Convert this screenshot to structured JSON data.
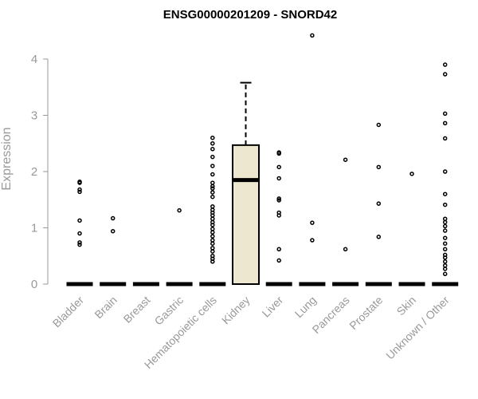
{
  "chart_data": {
    "type": "box",
    "title": "ENSG00000201209 - SNORD42",
    "xlabel": "",
    "ylabel": "Expression",
    "ylim": [
      0,
      4.5
    ],
    "yticks": [
      "0",
      "1",
      "2",
      "3",
      "4"
    ],
    "grid": false,
    "colors": {
      "box_fill": "#ede7cf",
      "stroke": "#000000",
      "axis_text": "#999999"
    },
    "categories": [
      "Bladder",
      "Brain",
      "Breast",
      "Gastric",
      "Hematopoietic cells",
      "Kidney",
      "Liver",
      "Lung",
      "Pancreas",
      "Prostate",
      "Skin",
      "Unknown / Other"
    ],
    "boxes": [
      {
        "name": "Bladder",
        "q1": 0,
        "median": 0,
        "q3": 0,
        "whisker_low": 0,
        "whisker_high": 0,
        "outliers": [
          1.82,
          1.8,
          1.68,
          1.64,
          1.13,
          0.9,
          0.74,
          0.7
        ]
      },
      {
        "name": "Brain",
        "q1": 0,
        "median": 0,
        "q3": 0,
        "whisker_low": 0,
        "whisker_high": 0,
        "outliers": [
          1.17,
          0.94
        ]
      },
      {
        "name": "Breast",
        "q1": 0,
        "median": 0,
        "q3": 0,
        "whisker_low": 0,
        "whisker_high": 0,
        "outliers": []
      },
      {
        "name": "Gastric",
        "q1": 0,
        "median": 0,
        "q3": 0,
        "whisker_low": 0,
        "whisker_high": 0,
        "outliers": [
          1.31
        ]
      },
      {
        "name": "Hematopoietic cells",
        "q1": 0,
        "median": 0,
        "q3": 0,
        "whisker_low": 0,
        "whisker_high": 0,
        "outliers": [
          2.6,
          2.5,
          2.4,
          2.26,
          2.1,
          1.95,
          1.8,
          1.74,
          1.7,
          1.63,
          1.55,
          1.38,
          1.32,
          1.27,
          1.22,
          1.16,
          1.1,
          1.05,
          0.98,
          0.92,
          0.85,
          0.78,
          0.72,
          0.64,
          0.58,
          0.5,
          0.45,
          0.4
        ]
      },
      {
        "name": "Kidney",
        "q1": 0,
        "median": 1.85,
        "q3": 2.47,
        "whisker_low": 0,
        "whisker_high": 3.58,
        "outliers": []
      },
      {
        "name": "Liver",
        "q1": 0,
        "median": 0,
        "q3": 0,
        "whisker_low": 0,
        "whisker_high": 0,
        "outliers": [
          2.34,
          2.32,
          2.08,
          1.88,
          1.52,
          1.49,
          1.27,
          1.22,
          0.62,
          0.42
        ]
      },
      {
        "name": "Lung",
        "q1": 0,
        "median": 0,
        "q3": 0,
        "whisker_low": 0,
        "whisker_high": 0,
        "outliers": [
          4.42,
          1.09,
          0.78
        ]
      },
      {
        "name": "Pancreas",
        "q1": 0,
        "median": 0,
        "q3": 0,
        "whisker_low": 0,
        "whisker_high": 0,
        "outliers": [
          2.21,
          0.62
        ]
      },
      {
        "name": "Prostate",
        "q1": 0,
        "median": 0,
        "q3": 0,
        "whisker_low": 0,
        "whisker_high": 0,
        "outliers": [
          2.83,
          2.08,
          1.43,
          0.84
        ]
      },
      {
        "name": "Skin",
        "q1": 0,
        "median": 0,
        "q3": 0,
        "whisker_low": 0,
        "whisker_high": 0,
        "outliers": [
          1.96
        ]
      },
      {
        "name": "Unknown / Other",
        "q1": 0,
        "median": 0,
        "q3": 0,
        "whisker_low": 0,
        "whisker_high": 0,
        "outliers": [
          3.9,
          3.73,
          3.03,
          2.86,
          2.59,
          2.0,
          1.6,
          1.41,
          1.16,
          1.1,
          1.03,
          0.95,
          0.82,
          0.72,
          0.62,
          0.52,
          0.47,
          0.4,
          0.33,
          0.27,
          0.18
        ]
      }
    ]
  }
}
